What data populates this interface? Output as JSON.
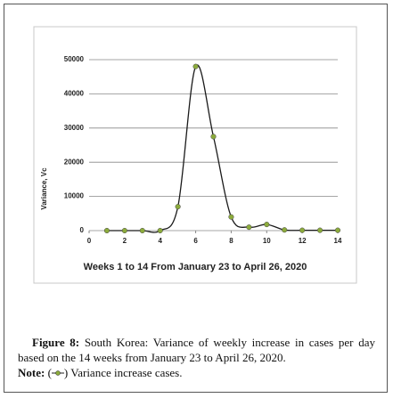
{
  "chart_data": {
    "type": "line",
    "x_label": "Weeks 1 to 14 From January 23 to April 26, 2020",
    "y_label": "Variance, Vc",
    "x": [
      1,
      2,
      3,
      4,
      5,
      6,
      7,
      8,
      9,
      10,
      11,
      12,
      13,
      14
    ],
    "series": [
      {
        "name": "Variance increase cases",
        "color": "#1a1a1a",
        "marker_color": "#8cab3c",
        "values": [
          0,
          0,
          0,
          0,
          7000,
          48000,
          27500,
          4000,
          1000,
          1800,
          200,
          100,
          100,
          100
        ]
      }
    ],
    "xlim": [
      0,
      14
    ],
    "xticks": [
      0,
      2,
      4,
      6,
      8,
      10,
      12,
      14
    ],
    "ylim": [
      0,
      50000
    ],
    "yticks": [
      0,
      10000,
      20000,
      30000,
      40000,
      50000
    ],
    "grid": true
  },
  "caption": {
    "label": "Figure 8:",
    "text": " South Korea: Variance of weekly increase in cases per day based on the 14 weeks from January 23 to April 26, 2020.",
    "note_label": "Note:",
    "note_open": " (",
    "note_close": ") Variance increase cases."
  }
}
